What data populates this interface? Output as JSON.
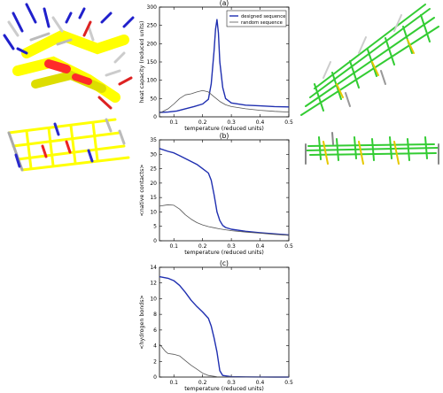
{
  "figure": {
    "panels": [
      {
        "id": "a",
        "label": "(a)",
        "type": "line",
        "ylabel": "heat capacity (reduced units)",
        "xlabel": "temperature (reduced units)",
        "xlim": [
          0.05,
          0.5
        ],
        "ylim": [
          0,
          300
        ],
        "xticks": [
          "0.1",
          "0.2",
          "0.3",
          "0.4",
          "0.5"
        ],
        "yticks": [
          "0",
          "50",
          "100",
          "150",
          "200",
          "250",
          "300"
        ],
        "legend": [
          "designed sequence",
          "random sequence"
        ]
      },
      {
        "id": "b",
        "label": "(b)",
        "type": "line",
        "ylabel": "<native contacts>",
        "xlabel": "temperature (reduced units)",
        "xlim": [
          0.05,
          0.5
        ],
        "ylim": [
          0,
          35
        ],
        "xticks": [
          "0.1",
          "0.2",
          "0.3",
          "0.4",
          "0.5"
        ],
        "yticks": [
          "0",
          "5",
          "10",
          "15",
          "20",
          "25",
          "30",
          "35"
        ]
      },
      {
        "id": "c",
        "label": "(c)",
        "type": "line",
        "ylabel": "<hydrogen bonds>",
        "xlabel": "temperature (reduced units)",
        "xlim": [
          0.05,
          0.5
        ],
        "ylim": [
          0,
          14
        ],
        "xticks": [
          "0.1",
          "0.2",
          "0.3",
          "0.4",
          "0.5"
        ],
        "yticks": [
          "0",
          "2",
          "4",
          "6",
          "8",
          "10",
          "12",
          "14"
        ]
      }
    ]
  },
  "chart_data": [
    {
      "type": "line",
      "title": "(a)",
      "xlabel": "temperature (reduced units)",
      "ylabel": "heat capacity (reduced units)",
      "xlim": [
        0.05,
        0.5
      ],
      "ylim": [
        0,
        300
      ],
      "series": [
        {
          "name": "designed sequence",
          "color": "#1f2fb0",
          "x": [
            0.05,
            0.08,
            0.11,
            0.14,
            0.17,
            0.2,
            0.22,
            0.23,
            0.24,
            0.245,
            0.25,
            0.255,
            0.26,
            0.27,
            0.28,
            0.3,
            0.35,
            0.4,
            0.45,
            0.5
          ],
          "y": [
            12,
            13,
            16,
            22,
            28,
            35,
            48,
            90,
            180,
            240,
            266,
            230,
            150,
            80,
            50,
            38,
            32,
            30,
            28,
            27
          ]
        },
        {
          "name": "random sequence",
          "color": "#555555",
          "x": [
            0.05,
            0.08,
            0.1,
            0.12,
            0.14,
            0.16,
            0.18,
            0.2,
            0.22,
            0.24,
            0.26,
            0.28,
            0.3,
            0.35,
            0.4,
            0.45,
            0.5
          ],
          "y": [
            10,
            22,
            35,
            50,
            60,
            63,
            68,
            72,
            68,
            55,
            42,
            33,
            28,
            22,
            18,
            15,
            13
          ]
        }
      ]
    },
    {
      "type": "line",
      "title": "(b)",
      "xlabel": "temperature (reduced units)",
      "ylabel": "<native contacts>",
      "xlim": [
        0.05,
        0.5
      ],
      "ylim": [
        0,
        35
      ],
      "series": [
        {
          "name": "designed sequence",
          "color": "#1f2fb0",
          "x": [
            0.05,
            0.08,
            0.1,
            0.12,
            0.15,
            0.18,
            0.2,
            0.22,
            0.23,
            0.24,
            0.245,
            0.25,
            0.26,
            0.27,
            0.28,
            0.3,
            0.35,
            0.4,
            0.45,
            0.5
          ],
          "y": [
            32,
            31,
            30.5,
            29.5,
            28,
            26.5,
            25,
            23.5,
            21,
            16,
            13,
            10,
            7,
            5.3,
            4.6,
            4,
            3.3,
            2.8,
            2.4,
            2
          ]
        },
        {
          "name": "random sequence",
          "color": "#555555",
          "x": [
            0.05,
            0.08,
            0.1,
            0.12,
            0.14,
            0.16,
            0.18,
            0.2,
            0.22,
            0.24,
            0.26,
            0.28,
            0.3,
            0.35,
            0.4,
            0.45,
            0.5
          ],
          "y": [
            12,
            12.5,
            12.3,
            11,
            9,
            7.5,
            6.3,
            5.5,
            4.9,
            4.5,
            4.1,
            3.8,
            3.5,
            3,
            2.6,
            2.2,
            1.9
          ]
        }
      ]
    },
    {
      "type": "line",
      "title": "(c)",
      "xlabel": "temperature (reduced units)",
      "ylabel": "<hydrogen bonds>",
      "xlim": [
        0.05,
        0.5
      ],
      "ylim": [
        0,
        14
      ],
      "series": [
        {
          "name": "designed sequence",
          "color": "#1f2fb0",
          "x": [
            0.05,
            0.08,
            0.1,
            0.12,
            0.14,
            0.16,
            0.18,
            0.2,
            0.22,
            0.23,
            0.24,
            0.25,
            0.255,
            0.26,
            0.27,
            0.3,
            0.35,
            0.4,
            0.45,
            0.5
          ],
          "y": [
            12.8,
            12.6,
            12.3,
            11.7,
            10.8,
            9.8,
            9,
            8.3,
            7.5,
            6.5,
            5,
            3.2,
            2,
            0.8,
            0.2,
            0.05,
            0.02,
            0.01,
            0,
            0
          ]
        },
        {
          "name": "random sequence",
          "color": "#555555",
          "x": [
            0.05,
            0.07,
            0.08,
            0.1,
            0.12,
            0.14,
            0.16,
            0.18,
            0.2,
            0.22,
            0.25,
            0.3,
            0.4,
            0.5
          ],
          "y": [
            4.2,
            3.3,
            3.0,
            2.9,
            2.7,
            2.1,
            1.5,
            1.0,
            0.5,
            0.2,
            0.05,
            0.01,
            0,
            0
          ]
        }
      ]
    }
  ]
}
